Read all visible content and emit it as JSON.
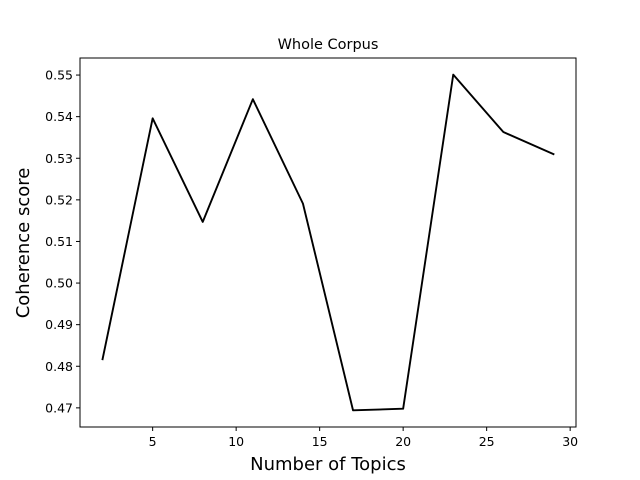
{
  "chart_data": {
    "type": "line",
    "title": "Whole Corpus",
    "xlabel": "Number of Topics",
    "ylabel": "Coherence score",
    "xlim": [
      0.65,
      30.35
    ],
    "ylim": [
      0.4654,
      0.5541
    ],
    "xticks": [
      5,
      10,
      15,
      20,
      25,
      30
    ],
    "yticks": [
      0.47,
      0.48,
      0.49,
      0.5,
      0.51,
      0.52,
      0.53,
      0.54,
      0.55
    ],
    "xtick_labels": [
      "5",
      "10",
      "15",
      "20",
      "25",
      "30"
    ],
    "ytick_labels": [
      "0.47",
      "0.48",
      "0.49",
      "0.50",
      "0.51",
      "0.52",
      "0.53",
      "0.54",
      "0.55"
    ],
    "grid": false,
    "line_color": "#000000",
    "series": [
      {
        "x": [
          2,
          5,
          8,
          11,
          14,
          17,
          20,
          23,
          26,
          29
        ],
        "y": [
          0.4817,
          0.5396,
          0.5147,
          0.5442,
          0.5191,
          0.4694,
          0.4698,
          0.5501,
          0.5363,
          0.531
        ]
      }
    ]
  }
}
